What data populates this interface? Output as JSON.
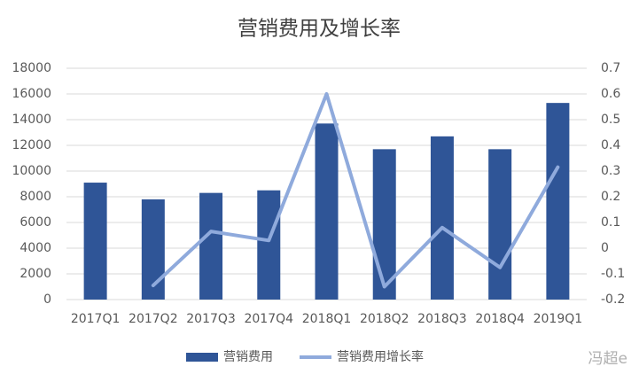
{
  "chart_data": {
    "type": "bar",
    "title": "营销费用及增长率",
    "categories": [
      "2017Q1",
      "2017Q2",
      "2017Q3",
      "2017Q4",
      "2018Q1",
      "2018Q2",
      "2018Q3",
      "2018Q4",
      "2019Q1"
    ],
    "series": [
      {
        "name": "营销费用",
        "type": "bar",
        "color": "#2f5597",
        "values": [
          9100,
          7800,
          8300,
          8500,
          13700,
          11700,
          12700,
          11700,
          15300
        ]
      },
      {
        "name": "营销费用增长率",
        "type": "line",
        "axis": "y2",
        "color": "#8faadc",
        "values": [
          null,
          -0.145,
          0.065,
          0.03,
          0.6,
          -0.15,
          0.08,
          -0.075,
          0.315
        ]
      }
    ],
    "ylim": [
      0,
      18000
    ],
    "yticks": [
      0,
      2000,
      4000,
      6000,
      8000,
      10000,
      12000,
      14000,
      16000,
      18000
    ],
    "y2lim": [
      -0.2,
      0.7
    ],
    "y2ticks": [
      -0.2,
      -0.1,
      0,
      0.1,
      0.2,
      0.3,
      0.4,
      0.5,
      0.6,
      0.7
    ],
    "grid": true,
    "legend": "bottom",
    "watermark": "冯超e"
  }
}
